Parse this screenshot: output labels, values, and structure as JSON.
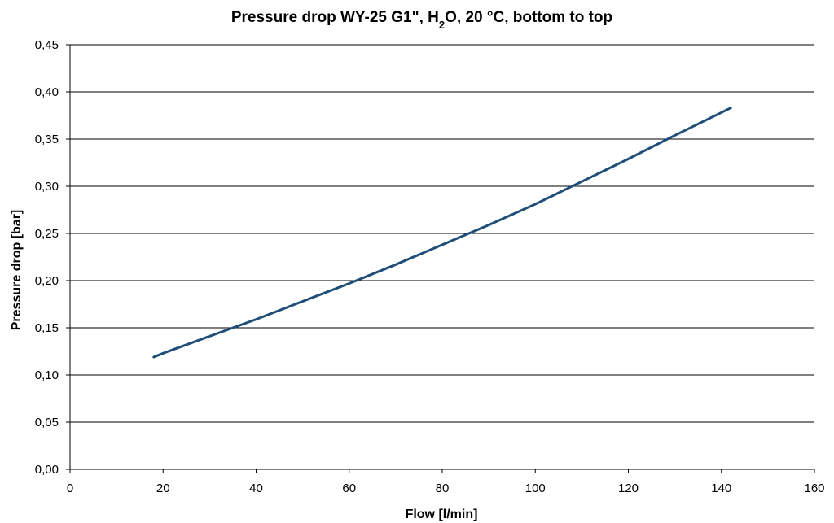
{
  "chart_data": {
    "type": "line",
    "title_parts": {
      "before_sub": "Pressure drop WY-25 G1\", H",
      "sub": "2",
      "after_sub": "O, 20 °C, bottom to top"
    },
    "xlabel": "Flow [l/min]",
    "ylabel": "Pressure drop  [bar]",
    "xlim": [
      0,
      160
    ],
    "ylim": [
      0,
      0.45
    ],
    "x_ticks": [
      0,
      20,
      40,
      60,
      80,
      100,
      120,
      140,
      160
    ],
    "y_ticks": [
      0,
      0.05,
      0.1,
      0.15,
      0.2,
      0.25,
      0.3,
      0.35,
      0.4,
      0.45
    ],
    "y_tick_labels": [
      "0,00",
      "0,05",
      "0,10",
      "0,15",
      "0,20",
      "0,25",
      "0,30",
      "0,35",
      "0,40",
      "0,45"
    ],
    "x_tick_labels": [
      "0",
      "20",
      "40",
      "60",
      "80",
      "100",
      "120",
      "140",
      "160"
    ],
    "grid": "horizontal",
    "series": [
      {
        "color": "#1f4e79",
        "x": [
          18,
          20,
          30,
          40,
          50,
          60,
          70,
          80,
          90,
          100,
          110,
          120,
          130,
          142
        ],
        "y": [
          0.119,
          0.123,
          0.141,
          0.159,
          0.178,
          0.197,
          0.217,
          0.238,
          0.259,
          0.281,
          0.305,
          0.329,
          0.354,
          0.383
        ]
      }
    ]
  }
}
